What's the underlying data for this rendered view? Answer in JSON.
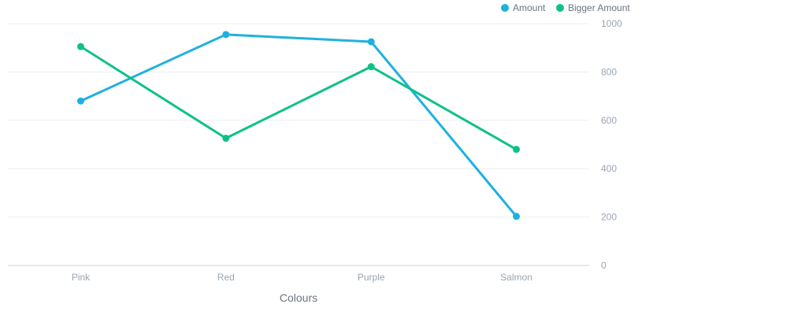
{
  "chart_data": {
    "type": "line",
    "categories": [
      "Pink",
      "Red",
      "Purple",
      "Salmon"
    ],
    "series": [
      {
        "name": "Amount",
        "color": "#1fb1de",
        "values": [
          680,
          955,
          925,
          203
        ]
      },
      {
        "name": "Bigger Amount",
        "color": "#10c08a",
        "values": [
          905,
          526,
          822,
          480
        ]
      }
    ],
    "xlabel": "Colours",
    "ylabel": "",
    "ylim": [
      0,
      1000
    ],
    "yticks": [
      0,
      200,
      400,
      600,
      800,
      1000
    ],
    "y_axis_position": "right",
    "grid": true,
    "legend_position": "top-right",
    "colors": {
      "grid": "#ebeef1",
      "axis": "#cfd5db",
      "tick_text": "#9aa5b1",
      "title_text": "#6b7480"
    }
  }
}
